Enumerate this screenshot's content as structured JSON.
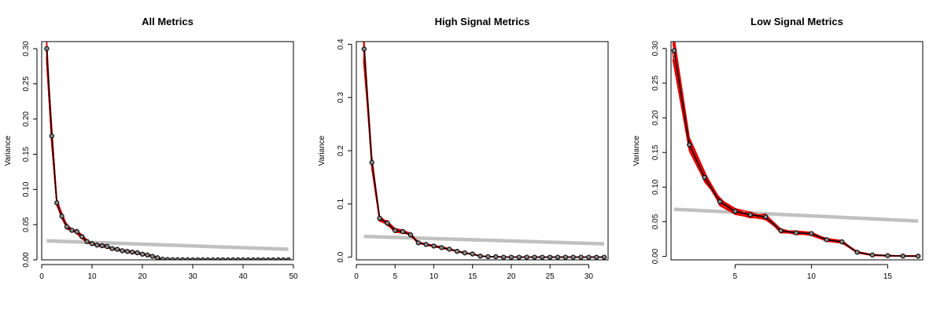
{
  "figure": {
    "colors": {
      "observed": "#000000",
      "bootstrap": "#e00000",
      "null": "#c0c0c0",
      "point_fill": "#8a8a8a"
    }
  },
  "chart_data": [
    {
      "type": "line",
      "title": "All Metrics",
      "xlabel": "",
      "ylabel": "Variance",
      "xlim": [
        0,
        50
      ],
      "ylim": [
        0,
        0.31
      ],
      "xticks": [
        0,
        10,
        20,
        30,
        40,
        50
      ],
      "yticks": [
        0.0,
        0.05,
        0.1,
        0.15,
        0.2,
        0.25,
        0.3
      ],
      "xtick_labels": [
        "0",
        "10",
        "20",
        "30",
        "40",
        "50"
      ],
      "ytick_labels": [
        "0.00",
        "0.05",
        "0.10",
        "0.15",
        "0.20",
        "0.25",
        "0.30"
      ],
      "series": [
        {
          "role": "observed",
          "x": [
            1,
            2,
            3,
            4,
            5,
            6,
            7,
            8,
            9,
            10,
            11,
            12,
            13,
            14,
            15,
            16,
            17,
            18,
            19,
            20,
            21,
            22,
            23,
            24,
            25,
            26,
            27,
            28,
            29,
            30,
            31,
            32,
            33,
            34,
            35,
            36,
            37,
            38,
            39,
            40,
            41,
            42,
            43,
            44,
            45,
            46,
            47,
            48,
            49
          ],
          "y": [
            0.3,
            0.176,
            0.081,
            0.062,
            0.047,
            0.042,
            0.04,
            0.033,
            0.026,
            0.023,
            0.021,
            0.02,
            0.019,
            0.016,
            0.015,
            0.013,
            0.012,
            0.011,
            0.01,
            0.008,
            0.007,
            0.005,
            0.003,
            0.001,
            0.0005,
            0.0003,
            0.0002,
            0.0001,
            0.0001,
            0,
            0,
            0,
            0,
            0,
            0,
            0,
            0,
            0,
            0,
            0,
            0,
            0,
            0,
            0,
            0,
            0,
            0,
            0,
            0
          ]
        },
        {
          "role": "null",
          "x": [
            1,
            49
          ],
          "y": [
            0.027,
            0.015
          ]
        }
      ]
    },
    {
      "type": "line",
      "title": "High Signal Metrics",
      "xlabel": "",
      "ylabel": "Variance",
      "xlim": [
        0,
        32.5
      ],
      "ylim": [
        -0.005,
        0.405
      ],
      "xticks": [
        0,
        5,
        10,
        15,
        20,
        25,
        30
      ],
      "yticks": [
        0.0,
        0.1,
        0.2,
        0.3,
        0.4
      ],
      "xtick_labels": [
        "0",
        "5",
        "10",
        "15",
        "20",
        "25",
        "30"
      ],
      "ytick_labels": [
        "0.0",
        "0.1",
        "0.2",
        "0.3",
        "0.4"
      ],
      "series": [
        {
          "role": "observed",
          "x": [
            1,
            2,
            3,
            4,
            5,
            6,
            7,
            8,
            9,
            10,
            11,
            12,
            13,
            14,
            15,
            16,
            17,
            18,
            19,
            20,
            21,
            22,
            23,
            24,
            25,
            26,
            27,
            28,
            29,
            30,
            31,
            32
          ],
          "y": [
            0.391,
            0.178,
            0.073,
            0.064,
            0.05,
            0.048,
            0.042,
            0.027,
            0.024,
            0.021,
            0.018,
            0.015,
            0.011,
            0.008,
            0.006,
            0.002,
            0.001,
            0.001,
            0,
            0,
            0,
            0,
            0,
            0,
            0,
            0,
            0,
            0,
            0,
            0,
            0,
            0
          ]
        },
        {
          "role": "null",
          "x": [
            1,
            32
          ],
          "y": [
            0.039,
            0.025
          ]
        }
      ]
    },
    {
      "type": "line",
      "title": "Low Signal Metrics",
      "xlabel": "",
      "ylabel": "Variance",
      "xlim": [
        0.8,
        17.3
      ],
      "ylim": [
        -0.005,
        0.31
      ],
      "xticks": [
        5,
        10,
        15
      ],
      "yticks": [
        0.0,
        0.05,
        0.1,
        0.15,
        0.2,
        0.25,
        0.3
      ],
      "xtick_labels": [
        "5",
        "10",
        "15"
      ],
      "ytick_labels": [
        "0.00",
        "0.05",
        "0.10",
        "0.15",
        "0.20",
        "0.25",
        "0.30"
      ],
      "series": [
        {
          "role": "observed",
          "x": [
            1,
            2,
            3,
            4,
            5,
            6,
            7,
            8,
            9,
            10,
            11,
            12,
            13,
            14,
            15,
            16,
            17
          ],
          "y": [
            0.297,
            0.161,
            0.114,
            0.079,
            0.065,
            0.06,
            0.057,
            0.037,
            0.034,
            0.033,
            0.024,
            0.021,
            0.006,
            0.002,
            0.001,
            0.0005,
            0.0003
          ]
        },
        {
          "role": "null",
          "x": [
            1,
            17
          ],
          "y": [
            0.068,
            0.051
          ]
        }
      ]
    }
  ]
}
